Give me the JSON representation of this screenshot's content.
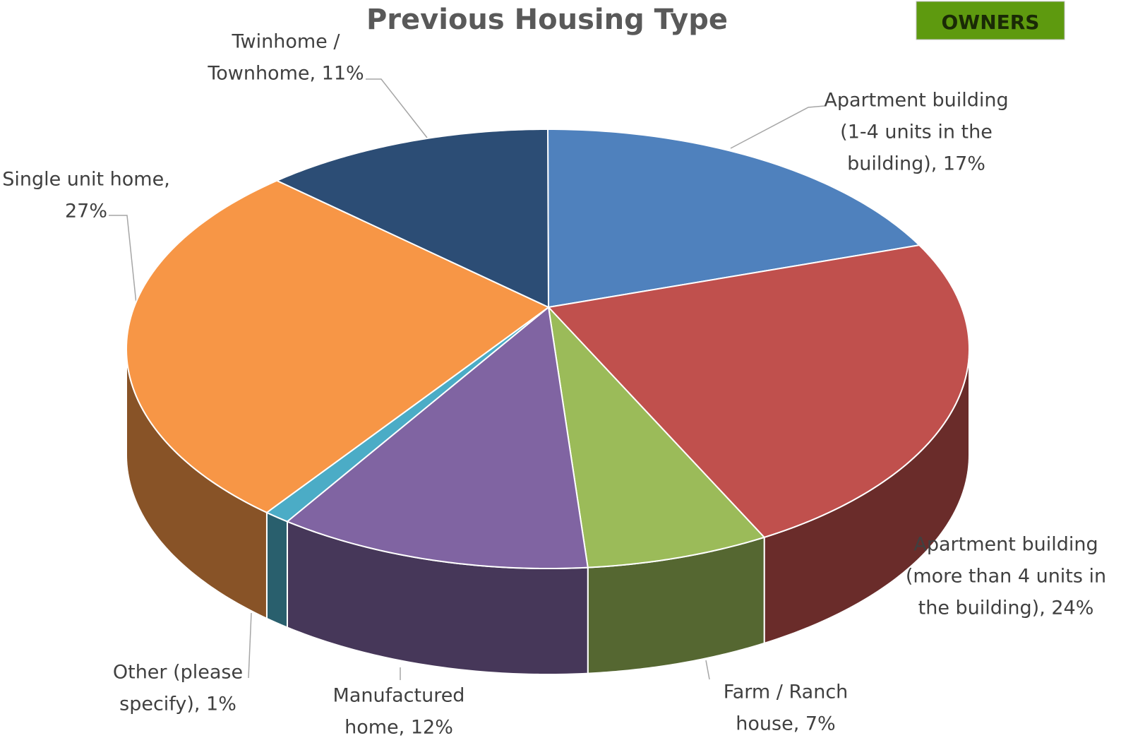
{
  "chart_data": {
    "type": "pie3d",
    "title": "Previous Housing Type",
    "annotation": "OWNERS",
    "values": [
      17,
      24,
      7,
      12,
      1,
      27,
      11
    ],
    "value_labels": [
      [
        "Apartment building",
        "(1-4 units in the",
        "building), 17%"
      ],
      [
        "Apartment building",
        "(more than 4 units in",
        "the building), 24%"
      ],
      [
        "Farm / Ranch",
        "house, 7%"
      ],
      [
        "Manufactured",
        "home, 12%"
      ],
      [
        "Other (please",
        "specify), 1%"
      ],
      [
        "Single unit home,",
        "27%"
      ],
      [
        "Twinhome /",
        "Townhome, 11%"
      ]
    ],
    "colors": [
      "#4f81bd",
      "#c0504d",
      "#9bbb59",
      "#8064a2",
      "#4bacc6",
      "#f79646",
      "#2c4d75"
    ]
  }
}
